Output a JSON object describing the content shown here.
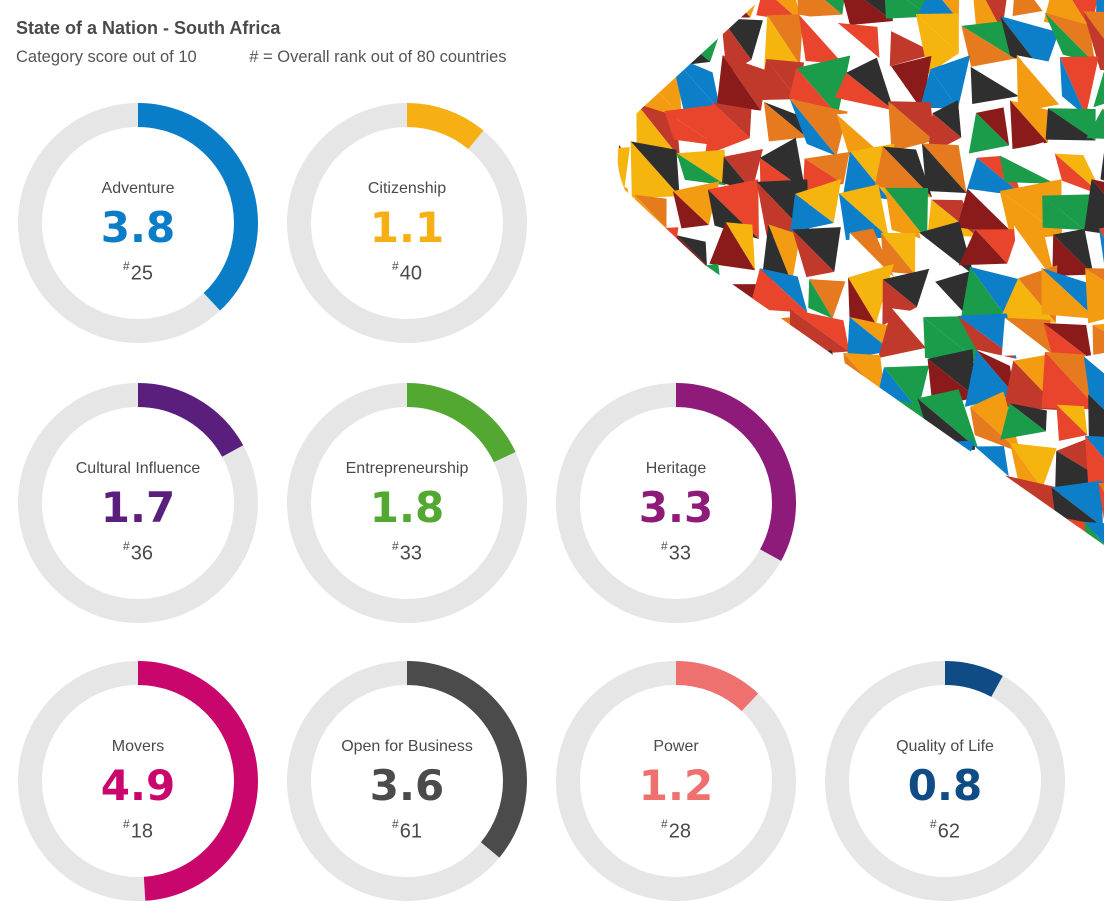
{
  "header": {
    "title": "State of a Nation - South Africa",
    "subtitle": "Category score out of 10",
    "legend_note": "# = Overall rank out of 80 countries"
  },
  "rank_symbol": "#",
  "track_color": "#e6e6e6",
  "decor_palette": [
    "#e8452c",
    "#f6b40e",
    "#0d7fc9",
    "#1a9c4b",
    "#e57b1e",
    "#8b1b1b",
    "#2f2f2f",
    "#ffffff",
    "#c0392b",
    "#f39c12"
  ],
  "chart_data": {
    "type": "donut",
    "title": "State of a Nation - South Africa",
    "subtitle": "Category score out of 10",
    "max_value": 10,
    "rank_out_of": 80,
    "items": [
      {
        "category": "Adventure",
        "value": 3.8,
        "display": "3.8",
        "rank": 25,
        "color": "#0a7dc8"
      },
      {
        "category": "Citizenship",
        "value": 1.1,
        "display": "1.1",
        "rank": 40,
        "color": "#f7b013"
      },
      {
        "category": "Cultural Influence",
        "value": 1.7,
        "display": "1.7",
        "rank": 36,
        "color": "#5a1f7c"
      },
      {
        "category": "Entrepreneurship",
        "value": 1.8,
        "display": "1.8",
        "rank": 33,
        "color": "#52a830"
      },
      {
        "category": "Heritage",
        "value": 3.3,
        "display": "3.3",
        "rank": 33,
        "color": "#8e1a79"
      },
      {
        "category": "Movers",
        "value": 4.9,
        "display": "4.9",
        "rank": 18,
        "color": "#c9066b"
      },
      {
        "category": "Open for Business",
        "value": 3.6,
        "display": "3.6",
        "rank": 61,
        "color": "#4b4b4b"
      },
      {
        "category": "Power",
        "value": 1.2,
        "display": "1.2",
        "rank": 28,
        "color": "#ef716f"
      },
      {
        "category": "Quality of Life",
        "value": 0.8,
        "display": "0.8",
        "rank": 62,
        "color": "#0f4c85"
      }
    ]
  }
}
